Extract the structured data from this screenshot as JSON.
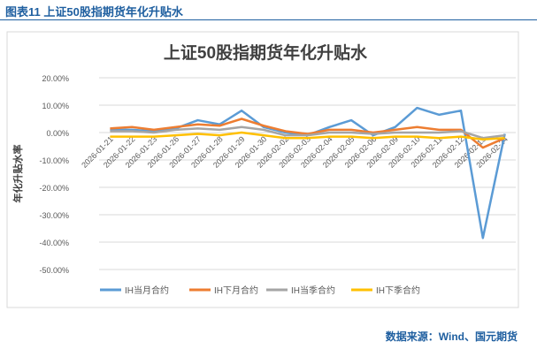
{
  "header": {
    "figure_title": "图表11  上证50股指期货年化升贴水",
    "source": "数据来源：Wind、国元期货"
  },
  "chart_data": {
    "type": "line",
    "title": "上证50股指期货年化升贴水",
    "ylabel": "年化升贴水率",
    "xlabel": "",
    "ylim": [
      -50,
      20
    ],
    "yticks": [
      20,
      10,
      0,
      -10,
      -20,
      -30,
      -40,
      -50
    ],
    "ytick_labels": [
      "20.00%",
      "10.00%",
      "0.00%",
      "-10.00%",
      "-20.00%",
      "-30.00%",
      "-40.00%",
      "-50.00%"
    ],
    "grid": true,
    "legend": "bottom",
    "categories": [
      "2026-01-21",
      "2026-01-22",
      "2026-01-23",
      "2026-01-26",
      "2026-01-27",
      "2026-01-28",
      "2026-01-29",
      "2026-01-30",
      "2026-02-02",
      "2026-02-03",
      "2026-02-04",
      "2026-02-05",
      "2026-02-06",
      "2026-02-09",
      "2026-02-10",
      "2026-02-11",
      "2026-02-12",
      "2026-02-13",
      "2026-02-24"
    ],
    "series": [
      {
        "name": "IH当月合约",
        "color": "#5b9bd5",
        "values": [
          1,
          1,
          0.5,
          1.5,
          4.5,
          3,
          8,
          2,
          0,
          -1,
          2,
          4.5,
          -1,
          2,
          9,
          6.5,
          8,
          -38.5,
          -0.5
        ]
      },
      {
        "name": "IH下月合约",
        "color": "#ed7d31",
        "values": [
          1.5,
          2,
          1,
          2,
          3,
          2.5,
          5,
          2.5,
          0.5,
          -0.5,
          1,
          1,
          0,
          1,
          2,
          1,
          1,
          -5.5,
          -2
        ]
      },
      {
        "name": "IH当季合约",
        "color": "#a5a5a5",
        "values": [
          0.5,
          0.5,
          0,
          1,
          1.5,
          1,
          2,
          1,
          -1,
          -1,
          0,
          0,
          -0.5,
          0,
          0,
          0,
          0.5,
          -2,
          -1
        ]
      },
      {
        "name": "IH下季合约",
        "color": "#ffc000",
        "values": [
          -1.5,
          -1.5,
          -1.5,
          -1,
          -0.5,
          -1,
          0,
          -1,
          -2,
          -2,
          -1.5,
          -1.5,
          -2,
          -1.5,
          -1.5,
          -2,
          -1.5,
          -2.5,
          -2
        ]
      }
    ]
  }
}
